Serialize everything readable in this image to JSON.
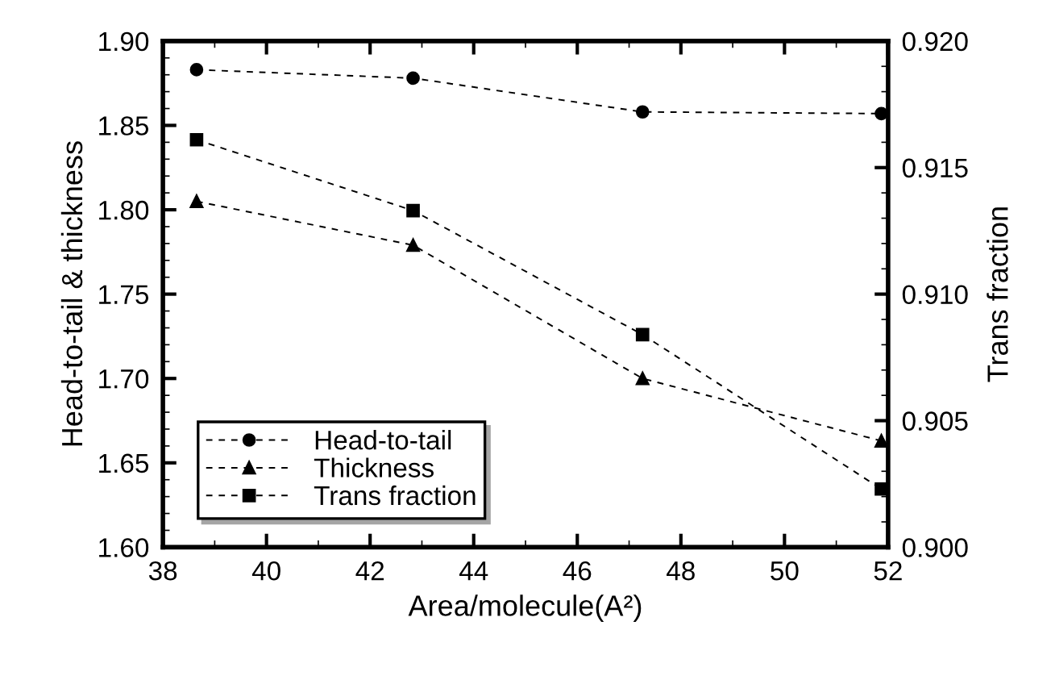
{
  "chart_data": {
    "type": "line",
    "xlabel": "Area/molecule(A²)",
    "ylabel": "Head-to-tail & thickness",
    "y2label": "Trans fraction",
    "x": [
      38.65,
      42.83,
      47.26,
      51.87
    ],
    "series": [
      {
        "name": "Head-to-tail",
        "color": "#000000",
        "marker": "circle",
        "values": [
          1.883,
          1.878,
          1.858,
          1.857
        ]
      },
      {
        "name": "Thickness",
        "color": "#000000",
        "marker": "triangle",
        "values": [
          1.805,
          1.779,
          1.7,
          1.663
        ]
      },
      {
        "name": "Trans fraction",
        "color": "#000000",
        "marker": "square",
        "axis": "y2",
        "values": [
          0.9161,
          0.9133,
          0.9084,
          0.9023
        ]
      }
    ],
    "xlim": [
      38,
      52
    ],
    "xticks": [
      38,
      40,
      42,
      44,
      46,
      48,
      50,
      52
    ],
    "ylim": [
      1.6,
      1.9
    ],
    "yticks": [
      {
        "value": 1.6,
        "label": "1.60"
      },
      {
        "value": 1.65,
        "label": "1.65"
      },
      {
        "value": 1.7,
        "label": "1.70"
      },
      {
        "value": 1.75,
        "label": "1.75"
      },
      {
        "value": 1.8,
        "label": "1.80"
      },
      {
        "value": 1.85,
        "label": "1.85"
      },
      {
        "value": 1.9,
        "label": "1.90"
      }
    ],
    "y2lim": [
      0.9,
      0.92
    ],
    "y2ticks": [
      {
        "value": 0.9,
        "label": "0.900"
      },
      {
        "value": 0.905,
        "label": "0.905"
      },
      {
        "value": 0.91,
        "label": "0.910"
      },
      {
        "value": 0.915,
        "label": "0.915"
      },
      {
        "value": 0.92,
        "label": "0.920"
      }
    ],
    "line_style": "dashed",
    "grid": false,
    "legend": "bottom left"
  }
}
